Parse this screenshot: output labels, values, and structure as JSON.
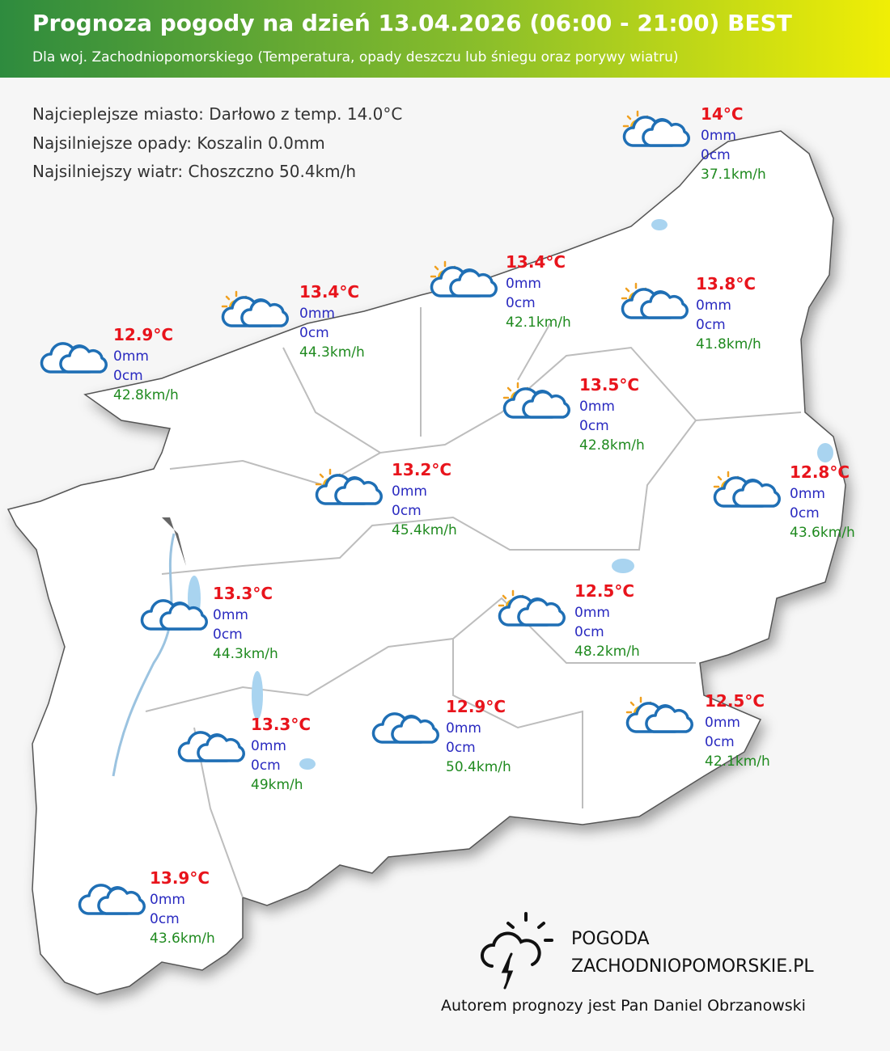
{
  "header": {
    "title": "Prognoza pogody na dzień 13.04.2026 (06:00 - 21:00) BEST",
    "subtitle": "Dla woj. Zachodniopomorskiego (Temperatura, opady deszczu lub śniegu oraz porywy wiatru)"
  },
  "summary": [
    "Najcieplejsze miasto: Darłowo z temp. 14.0°C",
    "Najsilniejsze opady: Koszalin 0.0mm",
    "Najsilniejszy wiatr: Choszczno 50.4km/h"
  ],
  "stations": [
    {
      "temp": "14°C",
      "rain": "0mm",
      "snow": "0cm",
      "wind": "37.1km/h"
    },
    {
      "temp": "13.4°C",
      "rain": "0mm",
      "snow": "0cm",
      "wind": "44.3km/h"
    },
    {
      "temp": "13.4°C",
      "rain": "0mm",
      "snow": "0cm",
      "wind": "42.1km/h"
    },
    {
      "temp": "13.8°C",
      "rain": "0mm",
      "snow": "0cm",
      "wind": "41.8km/h"
    },
    {
      "temp": "12.9°C",
      "rain": "0mm",
      "snow": "0cm",
      "wind": "42.8km/h"
    },
    {
      "temp": "13.5°C",
      "rain": "0mm",
      "snow": "0cm",
      "wind": "42.8km/h"
    },
    {
      "temp": "13.2°C",
      "rain": "0mm",
      "snow": "0cm",
      "wind": "45.4km/h"
    },
    {
      "temp": "12.8°C",
      "rain": "0mm",
      "snow": "0cm",
      "wind": "43.6km/h"
    },
    {
      "temp": "13.3°C",
      "rain": "0mm",
      "snow": "0cm",
      "wind": "44.3km/h"
    },
    {
      "temp": "12.5°C",
      "rain": "0mm",
      "snow": "0cm",
      "wind": "48.2km/h"
    },
    {
      "temp": "12.9°C",
      "rain": "0mm",
      "snow": "0cm",
      "wind": "50.4km/h"
    },
    {
      "temp": "12.5°C",
      "rain": "0mm",
      "snow": "0cm",
      "wind": "42.1km/h"
    },
    {
      "temp": "13.3°C",
      "rain": "0mm",
      "snow": "0cm",
      "wind": "49km/h"
    },
    {
      "temp": "13.9°C",
      "rain": "0mm",
      "snow": "0cm",
      "wind": "43.6km/h"
    }
  ],
  "logo": {
    "line1": "POGODA",
    "line2": "ZACHODNIOPOMORSKIE.PL"
  },
  "author": "Autorem prognozy jest Pan Daniel Obrzanowski"
}
